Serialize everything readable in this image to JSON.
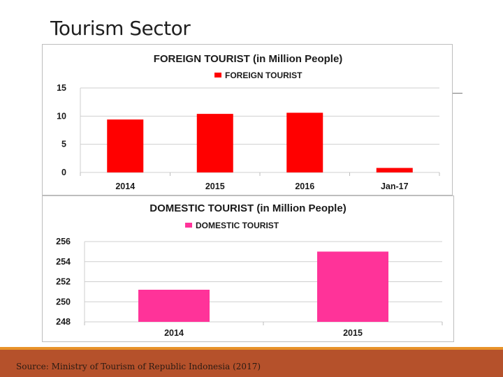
{
  "slide": {
    "title": "Tourism Sector",
    "source": "Source: Ministry of Tourism of Republic Indonesia (2017)"
  },
  "chart_data": [
    {
      "type": "bar",
      "title": "FOREIGN TOURIST (in Million People)",
      "categories": [
        "2014",
        "2015",
        "2016",
        "Jan-17"
      ],
      "series": [
        {
          "name": "FOREIGN TOURIST",
          "values": [
            9.4,
            10.4,
            10.6,
            0.8
          ],
          "color": "#ff0000"
        }
      ],
      "yticks": [
        "0",
        "5",
        "10",
        "15"
      ],
      "ylim": [
        0,
        15
      ],
      "grid": true,
      "legend": "top"
    },
    {
      "type": "bar",
      "title": "DOMESTIC TOURIST (in Million People)",
      "categories": [
        "2014",
        "2015"
      ],
      "series": [
        {
          "name": "DOMESTIC TOURIST",
          "values": [
            251.2,
            255.0
          ],
          "color": "#ff3399"
        }
      ],
      "yticks": [
        "248",
        "250",
        "252",
        "254",
        "256"
      ],
      "ylim": [
        248,
        256
      ],
      "grid": true,
      "legend": "top"
    }
  ]
}
